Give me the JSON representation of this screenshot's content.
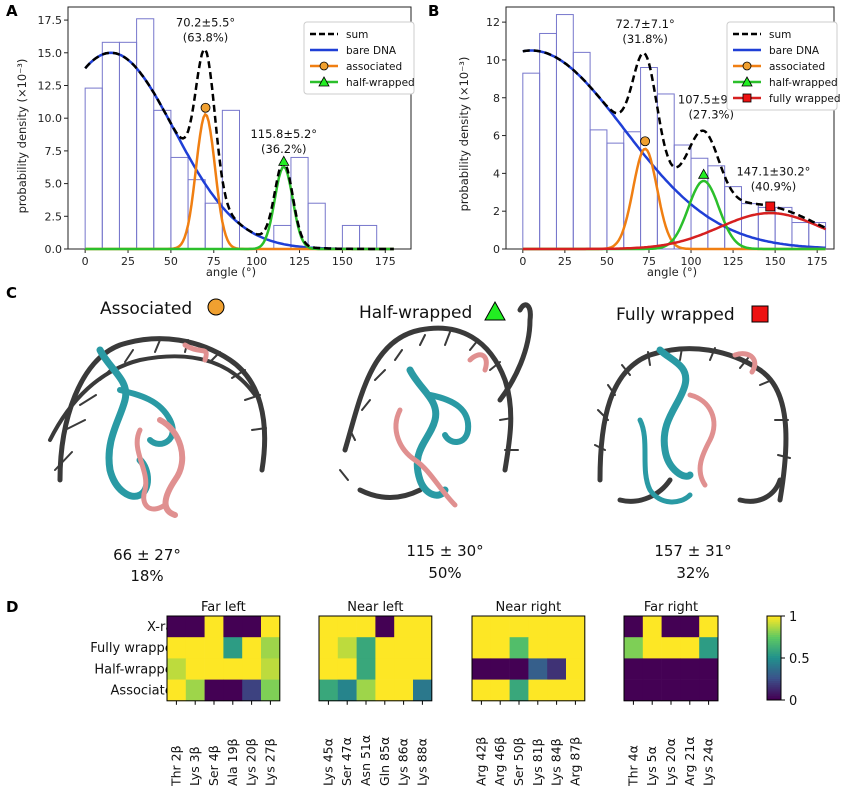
{
  "panels": {
    "A": "A",
    "B": "B",
    "C": "C",
    "D": "D"
  },
  "chart_data": [
    {
      "type": "bar",
      "panel": "A",
      "xlabel": "angle (°)",
      "ylabel": "probability density (×10⁻³)",
      "xlim": [
        -10,
        190
      ],
      "ylim": [
        0,
        18.5
      ],
      "xticks": [
        "0",
        "25",
        "50",
        "75",
        "100",
        "125",
        "150",
        "175"
      ],
      "xtick_values": [
        0,
        25,
        50,
        75,
        100,
        125,
        150,
        175
      ],
      "yticks": [
        "0.0",
        "2.5",
        "5.0",
        "7.5",
        "10.0",
        "12.5",
        "15.0",
        "17.5"
      ],
      "ytick_values": [
        0,
        2.5,
        5,
        7.5,
        10,
        12.5,
        15,
        17.5
      ],
      "bin_edges": [
        0,
        10,
        20,
        30,
        40,
        50,
        60,
        70,
        80,
        90,
        100,
        110,
        120,
        130,
        140,
        150,
        160,
        170,
        180
      ],
      "histogram": [
        12.3,
        15.8,
        15.8,
        17.6,
        10.6,
        7.0,
        5.3,
        3.5,
        10.6,
        0,
        0,
        1.8,
        7.0,
        3.5,
        0,
        1.8,
        1.8,
        0
      ],
      "curves": {
        "bare_dna": {
          "mu": 15,
          "sigma": 37,
          "peak": 15.0
        },
        "associated": {
          "mu": 70.2,
          "sigma": 5.5,
          "peak": 10.3
        },
        "half_wrapped": {
          "mu": 115.8,
          "sigma": 5.2,
          "peak": 6.3
        }
      },
      "markers": [
        {
          "series": "associated",
          "x": 70.2,
          "y": 10.8
        },
        {
          "series": "half-wrapped",
          "x": 115.8,
          "y": 6.7
        }
      ],
      "annotations": [
        {
          "line1": "70.2±5.5°",
          "line2": "(63.8%)",
          "x": 70.2,
          "y": 17.0
        },
        {
          "line1": "115.8±5.2°",
          "line2": "(36.2%)",
          "x": 115.8,
          "y": 8.5
        }
      ],
      "legend": {
        "placement": "top-right",
        "entries": [
          "sum",
          "bare DNA",
          "associated",
          "half-wrapped"
        ]
      }
    },
    {
      "type": "bar",
      "panel": "B",
      "xlabel": "angle (°)",
      "ylabel": "probability density (×10⁻³)",
      "xlim": [
        -10,
        185
      ],
      "ylim": [
        0,
        12.8
      ],
      "xticks": [
        "0",
        "25",
        "50",
        "75",
        "100",
        "125",
        "150",
        "175"
      ],
      "xtick_values": [
        0,
        25,
        50,
        75,
        100,
        125,
        150,
        175
      ],
      "yticks": [
        "0",
        "2",
        "4",
        "6",
        "8",
        "10",
        "12"
      ],
      "ytick_values": [
        0,
        2,
        4,
        6,
        8,
        10,
        12
      ],
      "bin_edges": [
        0,
        10,
        20,
        30,
        40,
        50,
        60,
        70,
        80,
        90,
        100,
        110,
        120,
        130,
        140,
        150,
        160,
        170,
        180
      ],
      "histogram": [
        9.3,
        11.4,
        12.4,
        10.4,
        6.3,
        5.6,
        6.2,
        9.6,
        8.2,
        5.5,
        4.8,
        4.4,
        3.3,
        2.4,
        2.2,
        2.2,
        1.4,
        1.4
      ],
      "curves": {
        "bare_dna": {
          "mu": 5,
          "sigma": 55,
          "peak": 10.5
        },
        "associated": {
          "mu": 72.7,
          "sigma": 7.1,
          "peak": 5.3
        },
        "half_wrapped": {
          "mu": 107.5,
          "sigma": 9.1,
          "peak": 3.6
        },
        "fully_wrapped": {
          "mu": 147.1,
          "sigma": 30.2,
          "peak": 1.9
        }
      },
      "markers": [
        {
          "series": "associated",
          "x": 72.7,
          "y": 5.7
        },
        {
          "series": "half-wrapped",
          "x": 107.5,
          "y": 3.95
        },
        {
          "series": "fully wrapped",
          "x": 147.1,
          "y": 2.25
        }
      ],
      "annotations": [
        {
          "line1": "72.7±7.1°",
          "line2": "(31.8%)",
          "x": 72.7,
          "y": 11.7
        },
        {
          "line1": "107.5±9.1°",
          "line2": "(27.3%)",
          "x": 112,
          "y": 7.7
        },
        {
          "line1": "147.1±30.2°",
          "line2": "(40.9%)",
          "x": 149,
          "y": 3.9
        }
      ],
      "legend": {
        "placement": "top-right",
        "entries": [
          "sum",
          "bare DNA",
          "associated",
          "half-wrapped",
          "fully wrapped"
        ]
      }
    },
    {
      "type": "heatmap",
      "panel": "D",
      "rows": [
        "X-ray",
        "Fully wrapped",
        "Half-wrapped",
        "Associated"
      ],
      "colorbar": {
        "min": 0,
        "max": 1,
        "ticks": [
          "1",
          "0.5",
          "0"
        ]
      },
      "groups": [
        {
          "title": "Far left",
          "columns": [
            "Thr 2β",
            "Lys 3β",
            "Ser 4β",
            "Ala 19β",
            "Lys 20β",
            "Lys 27β"
          ],
          "values": [
            [
              0,
              0,
              1,
              0,
              0,
              1
            ],
            [
              1,
              1,
              1,
              0.55,
              1,
              0.85
            ],
            [
              0.9,
              1,
              1,
              1,
              1,
              0.9
            ],
            [
              1,
              0.85,
              0,
              0,
              0.2,
              0.8
            ]
          ]
        },
        {
          "title": "Near left",
          "columns": [
            "Lys 45α",
            "Ser 47α",
            "Asn 51α",
            "Gln 85α",
            "Lys 86α",
            "Lys 88α"
          ],
          "values": [
            [
              1,
              1,
              1,
              0,
              1,
              1
            ],
            [
              1,
              0.9,
              0.6,
              1,
              1,
              1
            ],
            [
              1,
              1,
              0.6,
              1,
              1,
              1
            ],
            [
              0.6,
              0.45,
              0.85,
              1,
              1,
              0.4
            ]
          ]
        },
        {
          "title": "Near right",
          "columns": [
            "Arg 42β",
            "Arg 46β",
            "Ser 50β",
            "Lys 81β",
            "Lys 84β",
            "Arg 87β"
          ],
          "values": [
            [
              1,
              1,
              1,
              1,
              1,
              1
            ],
            [
              1,
              1,
              0.7,
              1,
              1,
              1
            ],
            [
              0,
              0,
              0,
              0.3,
              0.15,
              1
            ],
            [
              1,
              1,
              0.6,
              1,
              1,
              1
            ]
          ]
        },
        {
          "title": "Far right",
          "columns": [
            "Thr 4α",
            "Lys 5α",
            "Lys 20α",
            "Arg 21α",
            "Lys 24α"
          ],
          "values": [
            [
              0,
              1,
              0,
              0,
              1
            ],
            [
              0.8,
              1,
              1,
              1,
              0.55
            ],
            [
              0,
              0,
              0,
              0,
              0
            ],
            [
              0,
              0,
              0,
              0,
              0
            ]
          ]
        }
      ]
    }
  ],
  "legend_labels": {
    "sum": "sum",
    "bare": "bare DNA",
    "assoc": "associated",
    "half": "half-wrapped",
    "full": "fully wrapped"
  },
  "colors": {
    "sum": "#000000",
    "bare": "#1f3fd6",
    "assoc": "#f07f12",
    "half": "#2bbf2b",
    "full": "#d62020",
    "hist": "#7777cc",
    "dna": "#3a3a3a",
    "teal": "#2a9aa4",
    "pink": "#e09090",
    "assoc_marker": "#f0a030",
    "half_marker": "#22ee22",
    "full_marker": "#ee1111"
  },
  "structures": [
    {
      "title": "Associated",
      "value": "66 ± 27°",
      "percent": "18%",
      "marker": "circle"
    },
    {
      "title": "Half-wrapped",
      "value": "115 ± 30°",
      "percent": "50%",
      "marker": "triangle"
    },
    {
      "title": "Fully wrapped",
      "value": "157 ± 31°",
      "percent": "32%",
      "marker": "square"
    }
  ]
}
